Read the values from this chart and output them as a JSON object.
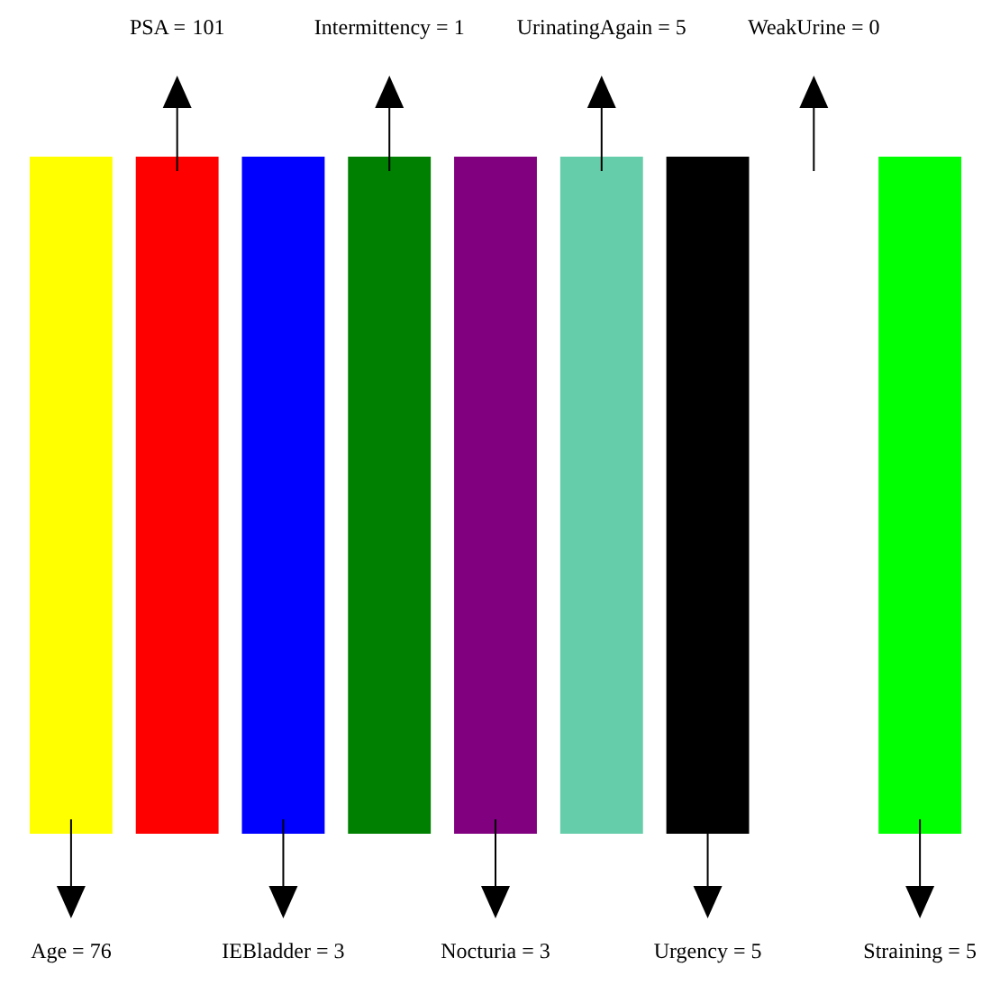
{
  "chart_data": {
    "type": "other",
    "categories": [
      "Age =",
      "PSA =",
      "IEBladder =",
      "Intermittency =",
      "Nocturia =",
      "UrinatingAgain =",
      "Urgency =",
      "WeakUrine =",
      "Straining ="
    ],
    "values": [
      76,
      101,
      3,
      1,
      3,
      5,
      5,
      0,
      5
    ],
    "data_labels": true,
    "colors": [
      "#ffff00",
      "#ff0000",
      "#0000ff",
      "#008000",
      "#800080",
      "#66cdaa",
      "#000000",
      null,
      "#00ff00"
    ]
  }
}
